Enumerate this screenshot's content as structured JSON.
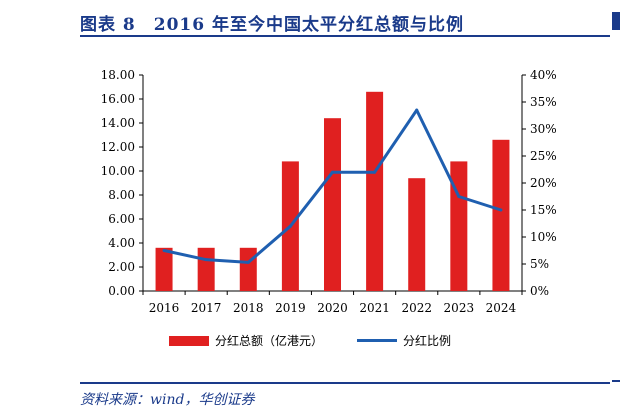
{
  "figure": {
    "title": "图表 8　2016 年至今中国太平分红总额与比例",
    "source": "资料来源：wind，华创证券"
  },
  "chart_data": {
    "type": "bar",
    "categories": [
      "2016",
      "2017",
      "2018",
      "2019",
      "2020",
      "2021",
      "2022",
      "2023",
      "2024"
    ],
    "series": [
      {
        "name": "分红总额（亿港元）",
        "type": "bar",
        "axis": "left",
        "values": [
          3.6,
          3.6,
          3.6,
          10.8,
          14.4,
          16.6,
          9.4,
          10.8,
          12.6
        ]
      },
      {
        "name": "分红比例",
        "type": "line",
        "axis": "right",
        "values": [
          7.5,
          5.8,
          5.3,
          12.0,
          22.0,
          22.0,
          33.5,
          17.5,
          15.0
        ]
      }
    ],
    "left_axis": {
      "min": 0,
      "max": 18,
      "step": 2,
      "ticks": [
        "0.00",
        "2.00",
        "4.00",
        "6.00",
        "8.00",
        "10.00",
        "12.00",
        "14.00",
        "16.00",
        "18.00"
      ]
    },
    "right_axis": {
      "min": 0,
      "max": 40,
      "step": 5,
      "ticks": [
        "0%",
        "5%",
        "10%",
        "15%",
        "20%",
        "25%",
        "30%",
        "35%",
        "40%"
      ]
    },
    "colors": {
      "bar": "#e02020",
      "line": "#1f5fb0",
      "title": "#1a3a8a"
    },
    "grid": false,
    "legend_position": "bottom"
  }
}
